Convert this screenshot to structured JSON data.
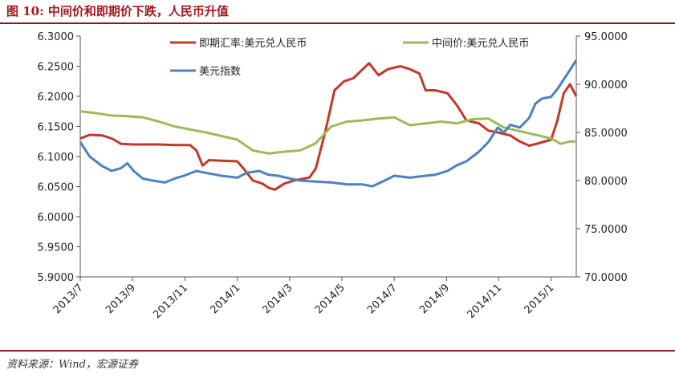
{
  "figure": {
    "title": "图 10:  中间价和即期价下跌，人民币升值",
    "source": "资料来源：Wind，宏源证券"
  },
  "colors": {
    "spot": "#c0392b",
    "central": "#9bbb59",
    "index": "#4f81bd",
    "rule": "#8b1a1a"
  },
  "chart_data": {
    "type": "line",
    "x_ticks": [
      "2013/7",
      "2013/9",
      "2013/11",
      "2014/1",
      "2014/3",
      "2014/5",
      "2014/7",
      "2014/9",
      "2014/11",
      "2015/1"
    ],
    "x_range": [
      2013.5,
      2015.08
    ],
    "y_left": {
      "range": [
        5.9,
        6.3
      ],
      "ticks": [
        "6.3000",
        "6.2500",
        "6.2000",
        "6.1500",
        "6.1000",
        "6.0500",
        "6.0000",
        "5.9500",
        "5.9000"
      ]
    },
    "y_right": {
      "range": [
        70,
        95
      ],
      "ticks": [
        "95.0000",
        "90.0000",
        "85.0000",
        "80.0000",
        "75.0000",
        "70.0000"
      ]
    },
    "legend_placement": "top",
    "series": [
      {
        "name": "即期汇率:美元兑人民币",
        "axis": "left",
        "color": "#c0392b",
        "points": [
          [
            2013.5,
            6.13
          ],
          [
            2013.53,
            6.136
          ],
          [
            2013.57,
            6.135
          ],
          [
            2013.6,
            6.13
          ],
          [
            2013.63,
            6.121
          ],
          [
            2013.67,
            6.12
          ],
          [
            2013.7,
            6.12
          ],
          [
            2013.75,
            6.12
          ],
          [
            2013.8,
            6.119
          ],
          [
            2013.85,
            6.119
          ],
          [
            2013.87,
            6.11
          ],
          [
            2013.89,
            6.085
          ],
          [
            2013.91,
            6.094
          ],
          [
            2013.95,
            6.093
          ],
          [
            2014.0,
            6.092
          ],
          [
            2014.02,
            6.08
          ],
          [
            2014.05,
            6.06
          ],
          [
            2014.08,
            6.055
          ],
          [
            2014.1,
            6.048
          ],
          [
            2014.12,
            6.045
          ],
          [
            2014.15,
            6.055
          ],
          [
            2014.18,
            6.06
          ],
          [
            2014.2,
            6.062
          ],
          [
            2014.23,
            6.065
          ],
          [
            2014.25,
            6.08
          ],
          [
            2014.28,
            6.14
          ],
          [
            2014.31,
            6.21
          ],
          [
            2014.34,
            6.225
          ],
          [
            2014.37,
            6.23
          ],
          [
            2014.4,
            6.245
          ],
          [
            2014.42,
            6.255
          ],
          [
            2014.45,
            6.235
          ],
          [
            2014.48,
            6.245
          ],
          [
            2014.52,
            6.25
          ],
          [
            2014.55,
            6.245
          ],
          [
            2014.58,
            6.238
          ],
          [
            2014.6,
            6.21
          ],
          [
            2014.63,
            6.21
          ],
          [
            2014.67,
            6.205
          ],
          [
            2014.7,
            6.185
          ],
          [
            2014.73,
            6.16
          ],
          [
            2014.77,
            6.155
          ],
          [
            2014.8,
            6.143
          ],
          [
            2014.83,
            6.14
          ],
          [
            2014.87,
            6.135
          ],
          [
            2014.9,
            6.125
          ],
          [
            2014.93,
            6.118
          ],
          [
            2014.96,
            6.122
          ],
          [
            2015.0,
            6.128
          ],
          [
            2015.02,
            6.16
          ],
          [
            2015.04,
            6.205
          ],
          [
            2015.06,
            6.22
          ],
          [
            2015.08,
            6.2
          ]
        ]
      },
      {
        "name": "中间价:美元兑人民币",
        "axis": "left",
        "color": "#9bbb59",
        "points": [
          [
            2013.5,
            6.175
          ],
          [
            2013.55,
            6.172
          ],
          [
            2013.6,
            6.168
          ],
          [
            2013.65,
            6.167
          ],
          [
            2013.7,
            6.165
          ],
          [
            2013.75,
            6.158
          ],
          [
            2013.8,
            6.15
          ],
          [
            2013.85,
            6.145
          ],
          [
            2013.9,
            6.14
          ],
          [
            2013.95,
            6.134
          ],
          [
            2014.0,
            6.128
          ],
          [
            2014.05,
            6.11
          ],
          [
            2014.1,
            6.105
          ],
          [
            2014.15,
            6.108
          ],
          [
            2014.2,
            6.11
          ],
          [
            2014.25,
            6.122
          ],
          [
            2014.3,
            6.15
          ],
          [
            2014.35,
            6.158
          ],
          [
            2014.4,
            6.16
          ],
          [
            2014.45,
            6.163
          ],
          [
            2014.5,
            6.165
          ],
          [
            2014.55,
            6.152
          ],
          [
            2014.6,
            6.155
          ],
          [
            2014.65,
            6.158
          ],
          [
            2014.7,
            6.155
          ],
          [
            2014.75,
            6.162
          ],
          [
            2014.8,
            6.163
          ],
          [
            2014.85,
            6.148
          ],
          [
            2014.9,
            6.142
          ],
          [
            2014.95,
            6.136
          ],
          [
            2015.0,
            6.13
          ],
          [
            2015.03,
            6.121
          ],
          [
            2015.06,
            6.125
          ],
          [
            2015.08,
            6.125
          ]
        ]
      },
      {
        "name": "美元指数",
        "axis": "right",
        "color": "#4f81bd",
        "points": [
          [
            2013.5,
            84.0
          ],
          [
            2013.53,
            82.5
          ],
          [
            2013.57,
            81.5
          ],
          [
            2013.6,
            81.0
          ],
          [
            2013.63,
            81.3
          ],
          [
            2013.65,
            81.8
          ],
          [
            2013.67,
            81.0
          ],
          [
            2013.7,
            80.2
          ],
          [
            2013.73,
            80.0
          ],
          [
            2013.77,
            79.8
          ],
          [
            2013.8,
            80.2
          ],
          [
            2013.83,
            80.5
          ],
          [
            2013.87,
            81.0
          ],
          [
            2013.9,
            80.8
          ],
          [
            2013.95,
            80.5
          ],
          [
            2014.0,
            80.3
          ],
          [
            2014.03,
            80.8
          ],
          [
            2014.07,
            81.0
          ],
          [
            2014.1,
            80.6
          ],
          [
            2014.13,
            80.5
          ],
          [
            2014.17,
            80.2
          ],
          [
            2014.2,
            80.0
          ],
          [
            2014.25,
            79.9
          ],
          [
            2014.3,
            79.8
          ],
          [
            2014.35,
            79.6
          ],
          [
            2014.4,
            79.6
          ],
          [
            2014.43,
            79.4
          ],
          [
            2014.47,
            80.0
          ],
          [
            2014.5,
            80.5
          ],
          [
            2014.55,
            80.3
          ],
          [
            2014.6,
            80.5
          ],
          [
            2014.63,
            80.6
          ],
          [
            2014.67,
            81.0
          ],
          [
            2014.7,
            81.6
          ],
          [
            2014.73,
            82.0
          ],
          [
            2014.77,
            83.0
          ],
          [
            2014.8,
            84.0
          ],
          [
            2014.83,
            85.5
          ],
          [
            2014.85,
            85.0
          ],
          [
            2014.87,
            85.8
          ],
          [
            2014.9,
            85.5
          ],
          [
            2014.93,
            86.5
          ],
          [
            2014.95,
            88.0
          ],
          [
            2014.97,
            88.5
          ],
          [
            2015.0,
            88.7
          ],
          [
            2015.02,
            89.5
          ],
          [
            2015.04,
            90.5
          ],
          [
            2015.06,
            91.5
          ],
          [
            2015.08,
            92.5
          ]
        ]
      }
    ]
  }
}
